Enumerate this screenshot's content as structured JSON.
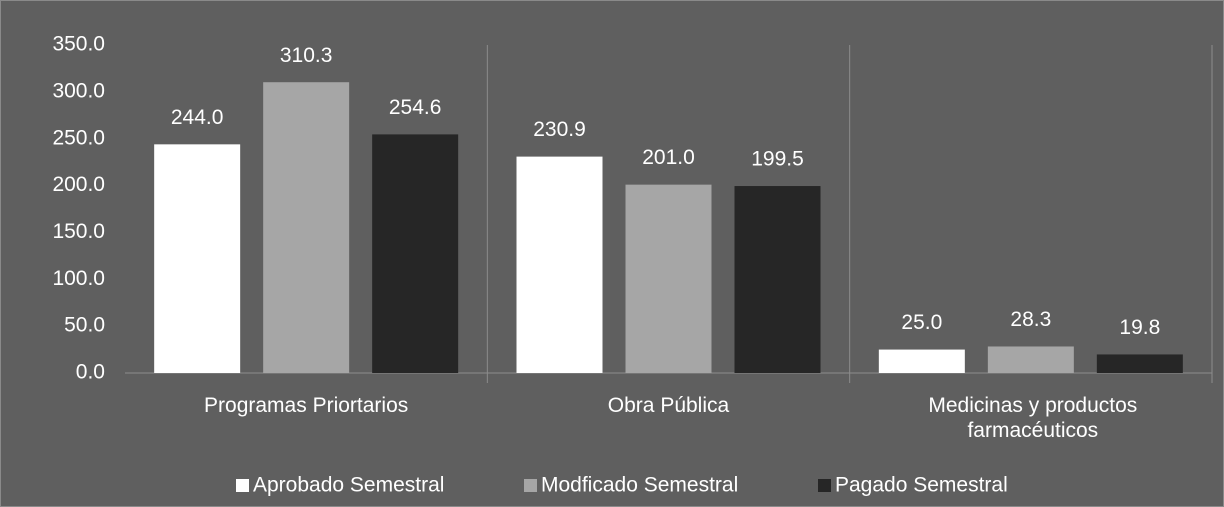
{
  "chart_data": {
    "type": "bar",
    "categories": [
      "Programas Priortarios",
      "Obra Pública",
      "Medicinas y productos farmacéuticos"
    ],
    "series": [
      {
        "name": "Aprobado Semestral",
        "color": "#ffffff",
        "values": [
          244.0,
          230.9,
          25.0
        ],
        "value_labels": [
          "244.0",
          "230.9",
          "25.0"
        ]
      },
      {
        "name": "Modficado Semestral",
        "color": "#a6a6a6",
        "values": [
          310.3,
          201.0,
          28.3
        ],
        "value_labels": [
          "310.3",
          "201.0",
          "28.3"
        ]
      },
      {
        "name": "Pagado Semestral",
        "color": "#262626",
        "values": [
          254.6,
          199.5,
          19.8
        ],
        "value_labels": [
          "254.6",
          "199.5",
          "19.8"
        ]
      }
    ],
    "ylim": [
      0,
      350
    ],
    "yticks": [
      {
        "value": 0,
        "label": "0.0"
      },
      {
        "value": 50,
        "label": "50.0"
      },
      {
        "value": 100,
        "label": "100.0"
      },
      {
        "value": 150,
        "label": "150.0"
      },
      {
        "value": 200,
        "label": "200.0"
      },
      {
        "value": 250,
        "label": "250.0"
      },
      {
        "value": 300,
        "label": "300.0"
      },
      {
        "value": 350,
        "label": "350.0"
      }
    ],
    "grid": false,
    "legend": "bottom"
  }
}
